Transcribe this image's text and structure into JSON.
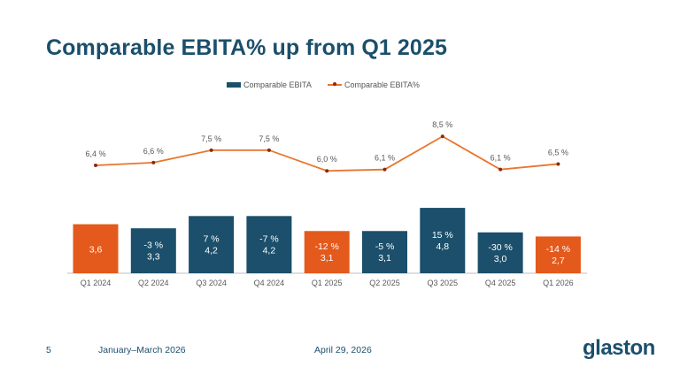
{
  "slide": {
    "title": "Comparable EBITA% up from Q1 2025",
    "page_number": "5",
    "period": "January–March 2026",
    "date": "April 29, 2026",
    "logo_text": "glaston"
  },
  "colors": {
    "title": "#1b4f6b",
    "bar_teal": "#1b4f6b",
    "bar_orange": "#e35a1c",
    "line": "#e8762d",
    "line_marker": "#8b2a0a",
    "axis": "#bfbfbf",
    "label": "#595959"
  },
  "chart_data": {
    "type": "bar",
    "categories": [
      "Q1 2024",
      "Q2 2024",
      "Q3 2024",
      "Q4 2024",
      "Q1 2025",
      "Q2 2025",
      "Q3 2025",
      "Q4 2025",
      "Q1 2026"
    ],
    "series": [
      {
        "name": "Comparable EBITA",
        "type": "bar",
        "values": [
          3.6,
          3.3,
          4.2,
          4.2,
          3.1,
          3.1,
          4.8,
          3.0,
          2.7
        ],
        "labels": [
          "3,6",
          "3,3",
          "4,2",
          "4,2",
          "3,1",
          "3,1",
          "4,8",
          "3,0",
          "2,7"
        ],
        "change_labels": [
          "",
          "-3 %",
          "7 %",
          "-7 %",
          "-12 %",
          "-5 %",
          "15 %",
          "-30 %",
          "-14 %"
        ],
        "bar_colors": [
          "orange",
          "teal",
          "teal",
          "teal",
          "orange",
          "teal",
          "teal",
          "teal",
          "orange"
        ]
      },
      {
        "name": "Comparable EBITA%",
        "type": "line",
        "values": [
          6.4,
          6.6,
          7.5,
          7.5,
          6.0,
          6.1,
          8.5,
          6.1,
          6.5
        ],
        "labels": [
          "6,4 %",
          "6,6 %",
          "7,5 %",
          "7,5 %",
          "6,0 %",
          "6,1 %",
          "8,5 %",
          "6,1 %",
          "6,5 %"
        ]
      }
    ],
    "legend_position": "top",
    "grid": false
  }
}
